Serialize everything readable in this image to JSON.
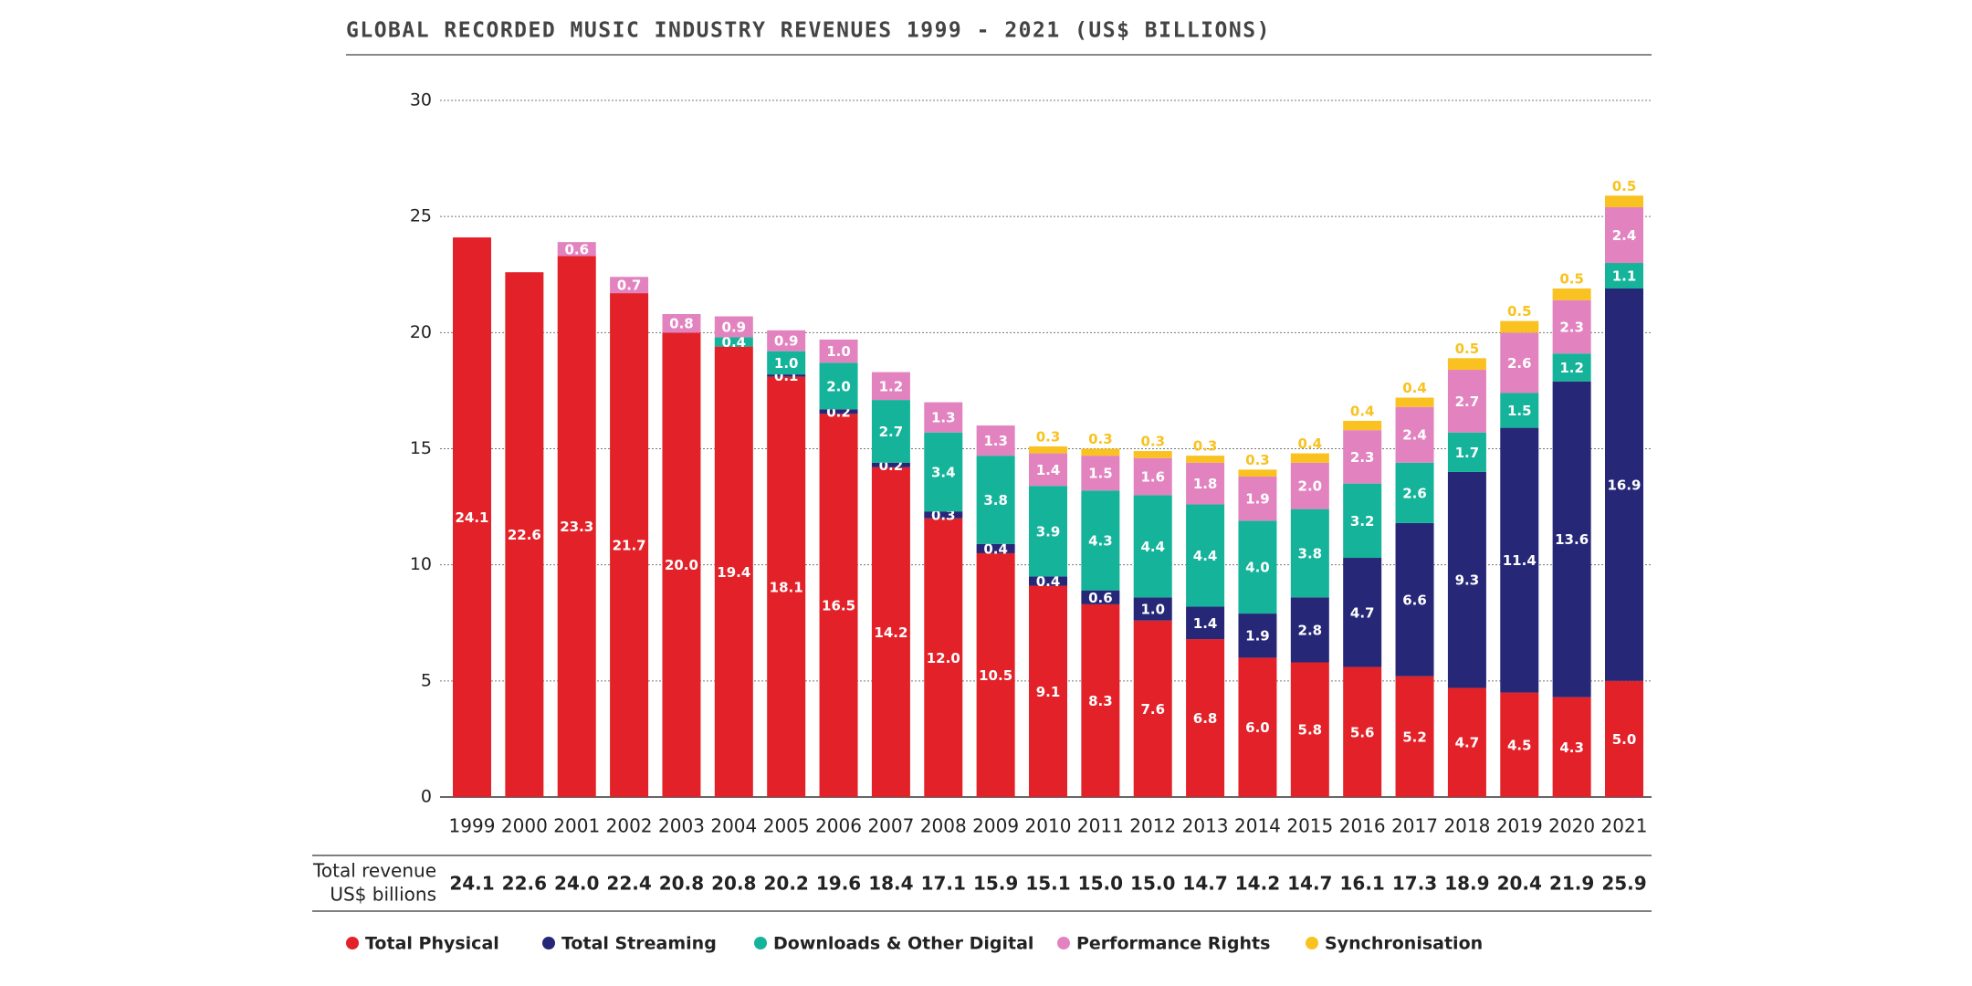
{
  "chart_data": {
    "type": "stacked_bar",
    "title": "GLOBAL RECORDED MUSIC INDUSTRY REVENUES 1999 - 2021 (US$ BILLIONS)",
    "categories": [
      "1999",
      "2000",
      "2001",
      "2002",
      "2003",
      "2004",
      "2005",
      "2006",
      "2007",
      "2008",
      "2009",
      "2010",
      "2011",
      "2012",
      "2013",
      "2014",
      "2015",
      "2016",
      "2017",
      "2018",
      "2019",
      "2020",
      "2021"
    ],
    "series": [
      {
        "name": "Total Physical",
        "color": "#e32128",
        "values": [
          24.1,
          22.6,
          23.3,
          21.7,
          20.0,
          19.4,
          18.1,
          16.5,
          14.2,
          12.0,
          10.5,
          9.1,
          8.3,
          7.6,
          6.8,
          6.0,
          5.8,
          5.6,
          5.2,
          4.7,
          4.5,
          4.3,
          5.0
        ],
        "value_labels": [
          "24.1",
          "22.6",
          "23.3",
          "21.7",
          "20.0",
          "19.4",
          "18.1",
          "16.5",
          "14.2",
          "12.0",
          "10.5",
          "9.1",
          "8.3",
          "7.6",
          "6.8",
          "6.0",
          "5.8",
          "5.6",
          "5.2",
          "4.7",
          "4.5",
          "4.3",
          "5.0"
        ]
      },
      {
        "name": "Total Streaming",
        "color": "#262777",
        "values": [
          null,
          null,
          null,
          null,
          null,
          null,
          0.1,
          0.2,
          0.2,
          0.3,
          0.4,
          0.4,
          0.6,
          1.0,
          1.4,
          1.9,
          2.8,
          4.7,
          6.6,
          9.3,
          11.4,
          13.6,
          16.9
        ],
        "value_labels": [
          null,
          null,
          null,
          null,
          null,
          null,
          "0.1",
          "0.2",
          "0.2",
          "0.3",
          "0.4",
          "0.4",
          "0.6",
          "1.0",
          "1.4",
          "1.9",
          "2.8",
          "4.7",
          "6.6",
          "9.3",
          "11.4",
          "13.6",
          "16.9"
        ]
      },
      {
        "name": "Downloads & Other Digital",
        "color": "#14b39a",
        "values": [
          null,
          null,
          null,
          null,
          null,
          0.4,
          1.0,
          2.0,
          2.7,
          3.4,
          3.8,
          3.9,
          4.3,
          4.4,
          4.4,
          4.0,
          3.8,
          3.2,
          2.6,
          1.7,
          1.5,
          1.2,
          1.1
        ],
        "value_labels": [
          null,
          null,
          null,
          null,
          null,
          "0.4",
          "1.0",
          "2.0",
          "2.7",
          "3.4",
          "3.8",
          "3.9",
          "4.3",
          "4.4",
          "4.4",
          "4.0",
          "3.8",
          "3.2",
          "2.6",
          "1.7",
          "1.5",
          "1.2",
          "1.1"
        ]
      },
      {
        "name": "Performance Rights",
        "color": "#e283bf",
        "values": [
          null,
          null,
          0.6,
          0.7,
          0.8,
          0.9,
          0.9,
          1.0,
          1.2,
          1.3,
          1.3,
          1.4,
          1.5,
          1.6,
          1.8,
          1.9,
          2.0,
          2.3,
          2.4,
          2.7,
          2.6,
          2.3,
          2.4
        ],
        "value_labels": [
          null,
          null,
          "0.6",
          "0.7",
          "0.8",
          "0.9",
          "0.9",
          "1.0",
          "1.2",
          "1.3",
          "1.3",
          "1.4",
          "1.5",
          "1.6",
          "1.8",
          "1.9",
          "2.0",
          "2.3",
          "2.4",
          "2.7",
          "2.6",
          "2.3",
          "2.4"
        ]
      },
      {
        "name": "Synchronisation",
        "color": "#f9c220",
        "values": [
          null,
          null,
          null,
          null,
          null,
          null,
          null,
          null,
          null,
          null,
          null,
          0.3,
          0.3,
          0.3,
          0.3,
          0.3,
          0.4,
          0.4,
          0.4,
          0.5,
          0.5,
          0.5,
          0.5
        ],
        "value_labels": [
          null,
          null,
          null,
          null,
          null,
          null,
          null,
          null,
          null,
          null,
          null,
          "0.3",
          "0.3",
          "0.3",
          "0.3",
          "0.3",
          "0.4",
          "0.4",
          "0.4",
          "0.5",
          "0.5",
          "0.5",
          "0.5"
        ]
      }
    ],
    "ylim": [
      0,
      30
    ],
    "yticks": [
      0,
      5,
      10,
      15,
      20,
      25,
      30
    ],
    "grid": true,
    "total_label": [
      "Total revenue",
      "US$ billions"
    ],
    "totals": [
      "24.1",
      "22.6",
      "24.0",
      "22.4",
      "20.8",
      "20.8",
      "20.2",
      "19.6",
      "18.4",
      "17.1",
      "15.9",
      "15.1",
      "15.0",
      "15.0",
      "14.7",
      "14.2",
      "14.7",
      "16.1",
      "17.3",
      "18.9",
      "20.4",
      "21.9",
      "25.9"
    ]
  }
}
